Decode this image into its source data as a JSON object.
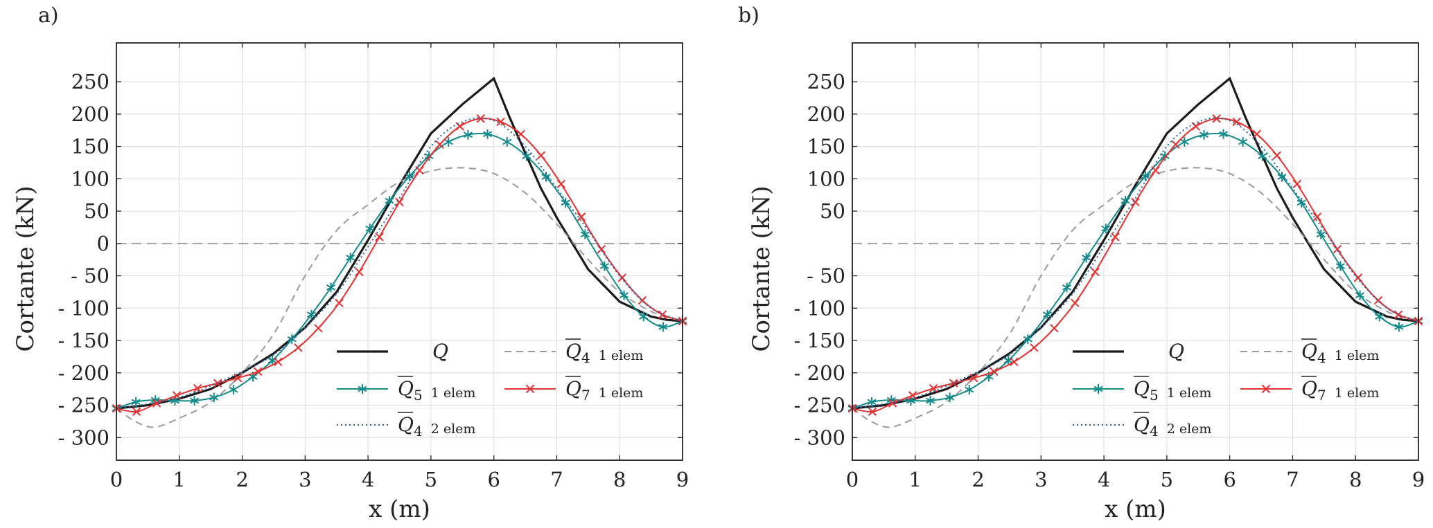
{
  "chart_data": [
    {
      "panel": "a)",
      "type": "line",
      "xlabel": "x (m)",
      "ylabel": "Cortante (kN)",
      "xlim": [
        0,
        9
      ],
      "ylim": [
        -335,
        310
      ],
      "xticks": [
        "0",
        "1",
        "2",
        "3",
        "4",
        "5",
        "6",
        "7",
        "8",
        "9"
      ],
      "yticks": [
        "250",
        "200",
        "150",
        "100",
        "50",
        "0",
        "- 50",
        "- 100",
        "- 150",
        "- 200",
        "- 250",
        "- 300"
      ],
      "ytick_values": [
        250,
        200,
        150,
        100,
        50,
        0,
        -50,
        -100,
        -150,
        -200,
        -250,
        -300
      ],
      "grid": true,
      "legend_position": "lower-right",
      "zero_line": true,
      "series": [
        {
          "name": "Q",
          "legend_sub": "",
          "legend_suffix": "",
          "color": "#1a1a1a",
          "dash": "none",
          "marker": "none",
          "overline": false,
          "x": [
            0,
            0.5,
            1,
            1.5,
            2,
            2.5,
            3,
            3.5,
            4,
            4.5,
            5,
            5.5,
            6,
            6.25,
            6.5,
            6.75,
            7,
            7.5,
            8,
            8.5,
            8.75,
            9
          ],
          "y": [
            -255,
            -250,
            -240,
            -225,
            -200,
            -170,
            -130,
            -75,
            5,
            90,
            170,
            215,
            255,
            195,
            140,
            85,
            40,
            -40,
            -90,
            -113,
            -118,
            -120
          ]
        },
        {
          "name": "Q",
          "legend_sub": "4",
          "legend_suffix": "1 elem",
          "color": "#999999",
          "dash": "10 7",
          "marker": "none",
          "overline": true,
          "x": [
            0,
            0.3,
            0.6,
            1,
            1.5,
            2,
            2.5,
            3,
            3.5,
            4,
            4.5,
            5,
            5.5,
            6,
            6.5,
            7,
            7.5,
            8,
            8.5,
            8.8,
            9
          ],
          "y": [
            -255,
            -275,
            -284,
            -270,
            -245,
            -200,
            -140,
            -50,
            20,
            60,
            95,
            112,
            117,
            108,
            78,
            30,
            -25,
            -75,
            -105,
            -115,
            -120
          ]
        },
        {
          "name": "Q",
          "legend_sub": "5",
          "legend_suffix": "1 elem",
          "color": "#138a8a",
          "dash": "none",
          "marker": "star",
          "overline": true,
          "x": [
            0,
            0.31,
            0.62,
            0.93,
            1.24,
            1.55,
            1.86,
            2.17,
            2.48,
            2.79,
            3.1,
            3.41,
            3.72,
            4.03,
            4.34,
            4.66,
            4.97,
            5.28,
            5.59,
            5.9,
            6.21,
            6.52,
            6.83,
            7.14,
            7.45,
            7.76,
            8.07,
            8.38,
            8.69,
            9
          ],
          "y": [
            -255,
            -245,
            -242,
            -243,
            -243,
            -238,
            -226,
            -206,
            -181,
            -148,
            -110,
            -68,
            -22,
            23,
            66,
            104,
            135,
            157,
            168,
            169,
            157,
            135,
            103,
            63,
            14,
            -35,
            -80,
            -113,
            -129,
            -120
          ]
        },
        {
          "name": "Q",
          "legend_sub": "7",
          "legend_suffix": "1 elem",
          "color": "#e53030",
          "dash": "none",
          "marker": "x",
          "overline": true,
          "x": [
            0,
            0.32,
            0.64,
            0.96,
            1.29,
            1.61,
            1.93,
            2.25,
            2.57,
            2.89,
            3.21,
            3.54,
            3.86,
            4.18,
            4.5,
            4.82,
            5.14,
            5.46,
            5.79,
            6.11,
            6.43,
            6.75,
            7.07,
            7.39,
            7.71,
            8.04,
            8.36,
            8.68,
            9
          ],
          "y": [
            -255,
            -260,
            -247,
            -235,
            -224,
            -216,
            -208,
            -198,
            -183,
            -161,
            -131,
            -92,
            -44,
            10,
            64,
            113,
            153,
            181,
            193,
            188,
            169,
            136,
            92,
            41,
            -9,
            -53,
            -88,
            -110,
            -120
          ]
        },
        {
          "name": "Q",
          "legend_sub": "4",
          "legend_suffix": "2 elem",
          "color": "#2a5b9e",
          "dash": "2 4",
          "marker": "none",
          "overline": true,
          "x": [
            0,
            0.5,
            1,
            1.5,
            2,
            2.5,
            3,
            3.5,
            4,
            4.5,
            5,
            5.5,
            6,
            6.5,
            7,
            7.5,
            8,
            8.5,
            9
          ],
          "y": [
            -255,
            -248,
            -238,
            -220,
            -198,
            -172,
            -130,
            -78,
            -5,
            70,
            150,
            188,
            190,
            150,
            85,
            20,
            -50,
            -100,
            -120
          ]
        }
      ]
    },
    {
      "panel": "b)",
      "type": "line",
      "xlabel": "x (m)",
      "ylabel": "Cortante (kN)",
      "xlim": [
        0,
        9
      ],
      "ylim": [
        -335,
        310
      ],
      "xticks": [
        "0",
        "1",
        "2",
        "3",
        "4",
        "5",
        "6",
        "7",
        "8",
        "9"
      ],
      "yticks": [
        "250",
        "200",
        "150",
        "100",
        "50",
        "- 50",
        "- 100",
        "- 150",
        "- 200",
        "- 250",
        "- 300"
      ],
      "ytick_values": [
        250,
        200,
        150,
        100,
        50,
        -50,
        -100,
        -150,
        -200,
        -250,
        -300
      ],
      "grid": true,
      "legend_position": "lower-right",
      "zero_line": true,
      "series": [
        {
          "name": "Q",
          "legend_sub": "",
          "legend_suffix": "",
          "color": "#1a1a1a",
          "dash": "none",
          "marker": "none",
          "overline": false,
          "x": [
            0,
            0.5,
            1,
            1.5,
            2,
            2.5,
            3,
            3.5,
            4,
            4.5,
            5,
            5.5,
            6,
            6.25,
            6.5,
            6.75,
            7,
            7.5,
            8,
            8.5,
            8.75,
            9
          ],
          "y": [
            -255,
            -250,
            -240,
            -225,
            -200,
            -170,
            -130,
            -75,
            5,
            90,
            170,
            215,
            255,
            195,
            140,
            85,
            40,
            -40,
            -90,
            -113,
            -118,
            -120
          ]
        },
        {
          "name": "Q",
          "legend_sub": "4",
          "legend_suffix": "1 elem",
          "color": "#999999",
          "dash": "10 7",
          "marker": "none",
          "overline": true,
          "x": [
            0,
            0.3,
            0.6,
            1,
            1.5,
            2,
            2.5,
            3,
            3.5,
            4,
            4.5,
            5,
            5.5,
            6,
            6.5,
            7,
            7.5,
            8,
            8.5,
            8.8,
            9
          ],
          "y": [
            -255,
            -275,
            -284,
            -270,
            -245,
            -200,
            -140,
            -50,
            20,
            60,
            95,
            112,
            117,
            108,
            78,
            30,
            -25,
            -75,
            -105,
            -115,
            -120
          ]
        },
        {
          "name": "Q",
          "legend_sub": "5",
          "legend_suffix": "1 elem",
          "color": "#138a8a",
          "dash": "none",
          "marker": "star",
          "overline": true,
          "x": [
            0,
            0.31,
            0.62,
            0.93,
            1.24,
            1.55,
            1.86,
            2.17,
            2.48,
            2.79,
            3.1,
            3.41,
            3.72,
            4.03,
            4.34,
            4.66,
            4.97,
            5.28,
            5.59,
            5.9,
            6.21,
            6.52,
            6.83,
            7.14,
            7.45,
            7.76,
            8.07,
            8.38,
            8.69,
            9
          ],
          "y": [
            -255,
            -245,
            -242,
            -243,
            -243,
            -238,
            -226,
            -206,
            -181,
            -148,
            -110,
            -68,
            -22,
            23,
            66,
            104,
            135,
            157,
            168,
            169,
            157,
            135,
            103,
            63,
            14,
            -35,
            -80,
            -113,
            -129,
            -120
          ]
        },
        {
          "name": "Q",
          "legend_sub": "7",
          "legend_suffix": "1 elem",
          "color": "#e53030",
          "dash": "none",
          "marker": "x",
          "overline": true,
          "x": [
            0,
            0.32,
            0.64,
            0.96,
            1.29,
            1.61,
            1.93,
            2.25,
            2.57,
            2.89,
            3.21,
            3.54,
            3.86,
            4.18,
            4.5,
            4.82,
            5.14,
            5.46,
            5.79,
            6.11,
            6.43,
            6.75,
            7.07,
            7.39,
            7.71,
            8.04,
            8.36,
            8.68,
            9
          ],
          "y": [
            -255,
            -260,
            -247,
            -235,
            -224,
            -216,
            -208,
            -198,
            -183,
            -161,
            -131,
            -92,
            -44,
            10,
            64,
            113,
            153,
            181,
            193,
            188,
            169,
            136,
            92,
            41,
            -9,
            -53,
            -88,
            -110,
            -120
          ]
        },
        {
          "name": "Q",
          "legend_sub": "4",
          "legend_suffix": "2 elem",
          "color": "#2a5b9e",
          "dash": "2 4",
          "marker": "none",
          "overline": true,
          "x": [
            0,
            0.5,
            1,
            1.5,
            2,
            2.5,
            3,
            3.5,
            4,
            4.5,
            5,
            5.5,
            6,
            6.5,
            7,
            7.5,
            8,
            8.5,
            9
          ],
          "y": [
            -255,
            -248,
            -238,
            -220,
            -198,
            -172,
            -130,
            -78,
            -5,
            70,
            150,
            188,
            190,
            150,
            85,
            20,
            -50,
            -100,
            -120
          ]
        }
      ]
    }
  ]
}
